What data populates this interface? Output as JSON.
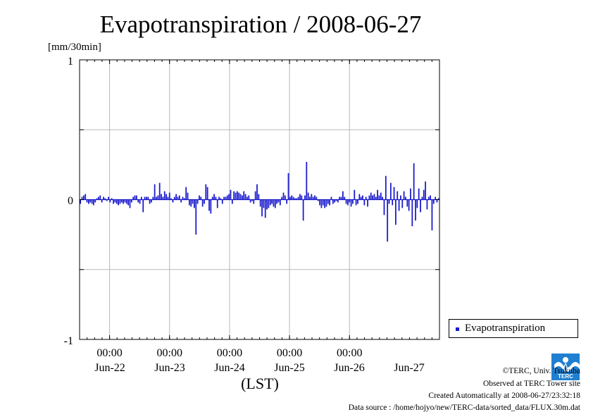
{
  "chart_data": {
    "type": "bar",
    "title": "Evapotranspiration / 2008-06-27",
    "ylabel": "[mm/30min]",
    "xlabel": "(LST)",
    "ylim": [
      -1,
      1
    ],
    "yticks": [
      "1",
      "0",
      "-1"
    ],
    "grid": true,
    "x_range_days": [
      "2008-06-21 12:00",
      "2008-06-27 12:00"
    ],
    "time_ticks": [
      "00:00",
      "00:00",
      "00:00",
      "00:00",
      "00:00"
    ],
    "date_ticks": [
      "Jun-22",
      "Jun-23",
      "Jun-24",
      "Jun-25",
      "Jun-26",
      "Jun-27"
    ],
    "legend_position": "right-bottom",
    "series": [
      {
        "name": "Evapotranspiration",
        "color": "#1a1acc",
        "interval_minutes": 30,
        "start": "2008-06-21 12:00",
        "values": [
          -0.03,
          0.02,
          0.03,
          0.04,
          -0.02,
          -0.03,
          -0.02,
          -0.03,
          -0.04,
          -0.02,
          0.01,
          0.02,
          0.03,
          -0.02,
          0.02,
          0.01,
          -0.01,
          0.02,
          -0.02,
          0.01,
          -0.03,
          -0.02,
          -0.03,
          -0.04,
          -0.03,
          -0.02,
          -0.03,
          -0.02,
          -0.03,
          -0.04,
          -0.06,
          -0.02,
          0.02,
          0.03,
          0.03,
          -0.02,
          -0.03,
          0.02,
          -0.09,
          0.02,
          0.02,
          0.02,
          -0.03,
          -0.02,
          0.02,
          0.11,
          0.02,
          0.03,
          0.12,
          0.04,
          0.02,
          0.06,
          0.04,
          0.02,
          0.05,
          0.01,
          -0.02,
          0.02,
          0.04,
          0.02,
          0.03,
          -0.02,
          0.02,
          0.01,
          0.09,
          0.05,
          -0.04,
          -0.05,
          -0.03,
          -0.06,
          -0.25,
          -0.03,
          0.03,
          0.02,
          -0.05,
          -0.03,
          0.11,
          0.09,
          -0.08,
          -0.1,
          0.02,
          0.04,
          0.02,
          -0.06,
          0.02,
          0.01,
          -0.03,
          0.02,
          0.02,
          0.03,
          0.04,
          0.07,
          -0.03,
          0.06,
          0.05,
          0.06,
          0.05,
          0.04,
          0.03,
          0.06,
          0.04,
          0.02,
          0.03,
          -0.02,
          -0.01,
          -0.03,
          0.06,
          0.11,
          0.04,
          -0.05,
          -0.12,
          -0.06,
          -0.13,
          -0.07,
          -0.06,
          -0.04,
          -0.03,
          -0.05,
          -0.06,
          -0.03,
          -0.02,
          -0.04,
          0.02,
          0.05,
          0.03,
          -0.03,
          0.19,
          0.02,
          0.03,
          0.02,
          0.01,
          0.01,
          0.02,
          0.04,
          0.03,
          -0.15,
          0.03,
          0.27,
          0.05,
          0.02,
          0.04,
          0.02,
          0.03,
          0.02,
          -0.01,
          -0.04,
          -0.06,
          -0.04,
          -0.06,
          -0.05,
          -0.03,
          -0.04,
          0.02,
          -0.03,
          -0.02,
          -0.01,
          -0.02,
          0.02,
          0.02,
          0.06,
          0.02,
          -0.03,
          -0.04,
          -0.02,
          -0.05,
          -0.03,
          0.07,
          -0.04,
          -0.03,
          0.04,
          0.02,
          0.03,
          -0.04,
          0.02,
          -0.05,
          0.03,
          0.05,
          0.03,
          0.04,
          0.02,
          0.07,
          0.03,
          0.05,
          0.02,
          -0.11,
          0.17,
          -0.3,
          -0.03,
          0.12,
          -0.04,
          0.09,
          -0.18,
          0.06,
          -0.08,
          0.03,
          -0.06,
          0.06,
          0.02,
          -0.05,
          -0.08,
          0.08,
          -0.19,
          0.26,
          -0.15,
          -0.06,
          0.08,
          -0.09,
          0.02,
          0.07,
          0.13,
          -0.07,
          0.02,
          0.03,
          -0.22,
          -0.03,
          0.02,
          -0.02,
          0.01
        ]
      }
    ]
  },
  "footer": {
    "copyright": "©TERC, Univ. Tsukuba",
    "observed": "Observed at TERC Tower site",
    "created": "Created Automatically at 2008-06-27/23:32:18",
    "source": "Data source : /home/hojyo/new/TERC-data/sorted_data/FLUX.30m.dat",
    "logo_text": "TERC"
  }
}
